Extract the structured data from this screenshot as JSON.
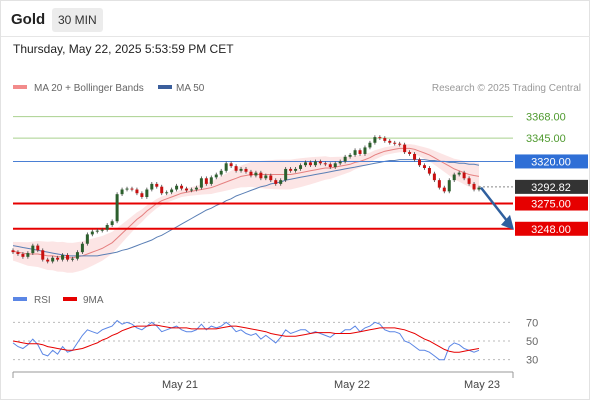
{
  "header": {
    "title": "Gold",
    "timeframe": "30 MIN"
  },
  "timestamp": "Thursday, May 22, 2025 5:53:59 PM CET",
  "credit": "Research © 2025 Trading Central",
  "colors": {
    "green_level": "#a9d18e",
    "green_text": "#4f9a2f",
    "red_level": "#e60000",
    "blue_level": "#4a7fd4",
    "blue_tag": "#2f6fd6",
    "dark_tag": "#333333",
    "candle_up": "#2c5f2d",
    "candle_down": "#c81010",
    "bollinger": "#f5a0a0",
    "ma50": "#5a7fb5",
    "rsi": "#5b86e5",
    "rsi_ma": "#e60000",
    "arrow": "#2f5f9e"
  },
  "chart_data": [
    {
      "type": "candlestick",
      "title": "",
      "legend": [
        {
          "label": "MA 20 + Bollinger Bands",
          "color": "#f28b8b"
        },
        {
          "label": "MA 50",
          "color": "#3b5f9c"
        }
      ],
      "ylim": [
        3190,
        3390
      ],
      "x_ticks": [
        "May 21",
        "May 22",
        "May 23"
      ],
      "levels": [
        {
          "value": 3368.0,
          "label": "3368.00",
          "kind": "resistance",
          "color": "green"
        },
        {
          "value": 3345.0,
          "label": "3345.00",
          "kind": "resistance",
          "color": "green"
        },
        {
          "value": 3320.0,
          "label": "3320.00",
          "kind": "pivot",
          "color": "blue"
        },
        {
          "value": 3275.0,
          "label": "3275.00",
          "kind": "support",
          "color": "red"
        },
        {
          "value": 3248.0,
          "label": "3248.00",
          "kind": "support",
          "color": "red"
        }
      ],
      "last_price": {
        "value": 3292.82,
        "label": "3292.82"
      },
      "close": [
        3223,
        3221,
        3218,
        3222,
        3230,
        3225,
        3215,
        3213,
        3217,
        3215,
        3220,
        3215,
        3216,
        3223,
        3232,
        3242,
        3245,
        3246,
        3247,
        3252,
        3256,
        3285,
        3290,
        3291,
        3290,
        3286,
        3282,
        3290,
        3296,
        3293,
        3286,
        3287,
        3290,
        3294,
        3291,
        3289,
        3290,
        3292,
        3302,
        3296,
        3303,
        3306,
        3310,
        3318,
        3315,
        3310,
        3312,
        3309,
        3305,
        3308,
        3302,
        3305,
        3300,
        3296,
        3300,
        3312,
        3310,
        3312,
        3316,
        3319,
        3316,
        3320,
        3318,
        3317,
        3314,
        3318,
        3320,
        3325,
        3327,
        3332,
        3328,
        3335,
        3340,
        3346,
        3345,
        3342,
        3340,
        3339,
        3338,
        3330,
        3328,
        3322,
        3316,
        3313,
        3307,
        3300,
        3292,
        3288,
        3300,
        3306,
        3308,
        3302,
        3296,
        3290,
        3292
      ],
      "ma20": [
        3224,
        3223,
        3222,
        3221,
        3221,
        3221,
        3220,
        3219,
        3219,
        3218,
        3218,
        3217,
        3217,
        3218,
        3219,
        3221,
        3223,
        3225,
        3227,
        3230,
        3233,
        3238,
        3243,
        3248,
        3253,
        3258,
        3262,
        3267,
        3271,
        3275,
        3278,
        3280,
        3282,
        3284,
        3286,
        3287,
        3288,
        3289,
        3290,
        3291,
        3292,
        3294,
        3296,
        3298,
        3300,
        3302,
        3304,
        3305,
        3306,
        3306,
        3306,
        3306,
        3306,
        3306,
        3306,
        3306,
        3306,
        3307,
        3308,
        3309,
        3310,
        3311,
        3312,
        3313,
        3313,
        3314,
        3315,
        3316,
        3317,
        3319,
        3320,
        3322,
        3324,
        3327,
        3329,
        3331,
        3332,
        3333,
        3334,
        3334,
        3334,
        3333,
        3331,
        3329,
        3327,
        3324,
        3321,
        3318,
        3315,
        3312,
        3310,
        3308,
        3306,
        3305,
        3304
      ],
      "ma50": [
        3230,
        3229,
        3228,
        3227,
        3226,
        3225,
        3224,
        3223,
        3222,
        3221,
        3220,
        3219,
        3219,
        3219,
        3219,
        3219,
        3219,
        3219,
        3220,
        3221,
        3222,
        3223,
        3225,
        3226,
        3228,
        3230,
        3232,
        3234,
        3236,
        3239,
        3241,
        3244,
        3247,
        3250,
        3253,
        3256,
        3259,
        3262,
        3265,
        3268,
        3270,
        3273,
        3275,
        3278,
        3280,
        3283,
        3285,
        3287,
        3289,
        3291,
        3293,
        3294,
        3296,
        3297,
        3298,
        3300,
        3301,
        3302,
        3303,
        3304,
        3305,
        3306,
        3307,
        3308,
        3309,
        3310,
        3311,
        3312,
        3313,
        3314,
        3315,
        3316,
        3317,
        3318,
        3319,
        3320,
        3321,
        3321,
        3322,
        3322,
        3322,
        3322,
        3322,
        3322,
        3321,
        3321,
        3320,
        3320,
        3319,
        3319,
        3318,
        3318,
        3317,
        3317,
        3316
      ]
    },
    {
      "type": "line",
      "title": "",
      "legend": [
        {
          "label": "RSI",
          "color": "#5b86e5"
        },
        {
          "label": "9MA",
          "color": "#e60000"
        }
      ],
      "ylim": [
        20,
        80
      ],
      "y_ticks": [
        "70",
        "50",
        "30"
      ],
      "series": [
        {
          "name": "RSI",
          "values": [
            48,
            44,
            42,
            46,
            52,
            46,
            36,
            34,
            40,
            36,
            44,
            38,
            40,
            48,
            56,
            62,
            60,
            58,
            62,
            64,
            66,
            72,
            68,
            70,
            68,
            64,
            62,
            66,
            70,
            66,
            60,
            62,
            64,
            66,
            62,
            60,
            60,
            62,
            68,
            62,
            66,
            64,
            66,
            70,
            66,
            60,
            62,
            58,
            56,
            58,
            52,
            56,
            52,
            48,
            54,
            62,
            58,
            60,
            62,
            62,
            58,
            60,
            58,
            56,
            54,
            58,
            58,
            62,
            62,
            66,
            60,
            64,
            66,
            70,
            68,
            62,
            60,
            60,
            58,
            50,
            48,
            44,
            40,
            40,
            38,
            34,
            30,
            30,
            44,
            48,
            46,
            42,
            40,
            38,
            40
          ]
        },
        {
          "name": "9MA",
          "values": [
            50,
            49,
            48,
            47,
            47,
            47,
            46,
            44,
            43,
            42,
            41,
            40,
            40,
            41,
            42,
            44,
            46,
            48,
            51,
            53,
            56,
            58,
            61,
            63,
            65,
            66,
            66,
            66,
            67,
            67,
            66,
            65,
            64,
            64,
            64,
            64,
            63,
            63,
            63,
            63,
            63,
            63,
            64,
            65,
            66,
            66,
            65,
            64,
            63,
            62,
            61,
            60,
            58,
            57,
            56,
            55,
            55,
            55,
            56,
            57,
            58,
            59,
            59,
            59,
            59,
            58,
            58,
            58,
            58,
            59,
            60,
            61,
            62,
            63,
            64,
            64,
            64,
            64,
            63,
            62,
            60,
            58,
            55,
            52,
            50,
            47,
            44,
            41,
            39,
            38,
            38,
            39,
            40,
            41,
            42
          ]
        }
      ]
    }
  ]
}
